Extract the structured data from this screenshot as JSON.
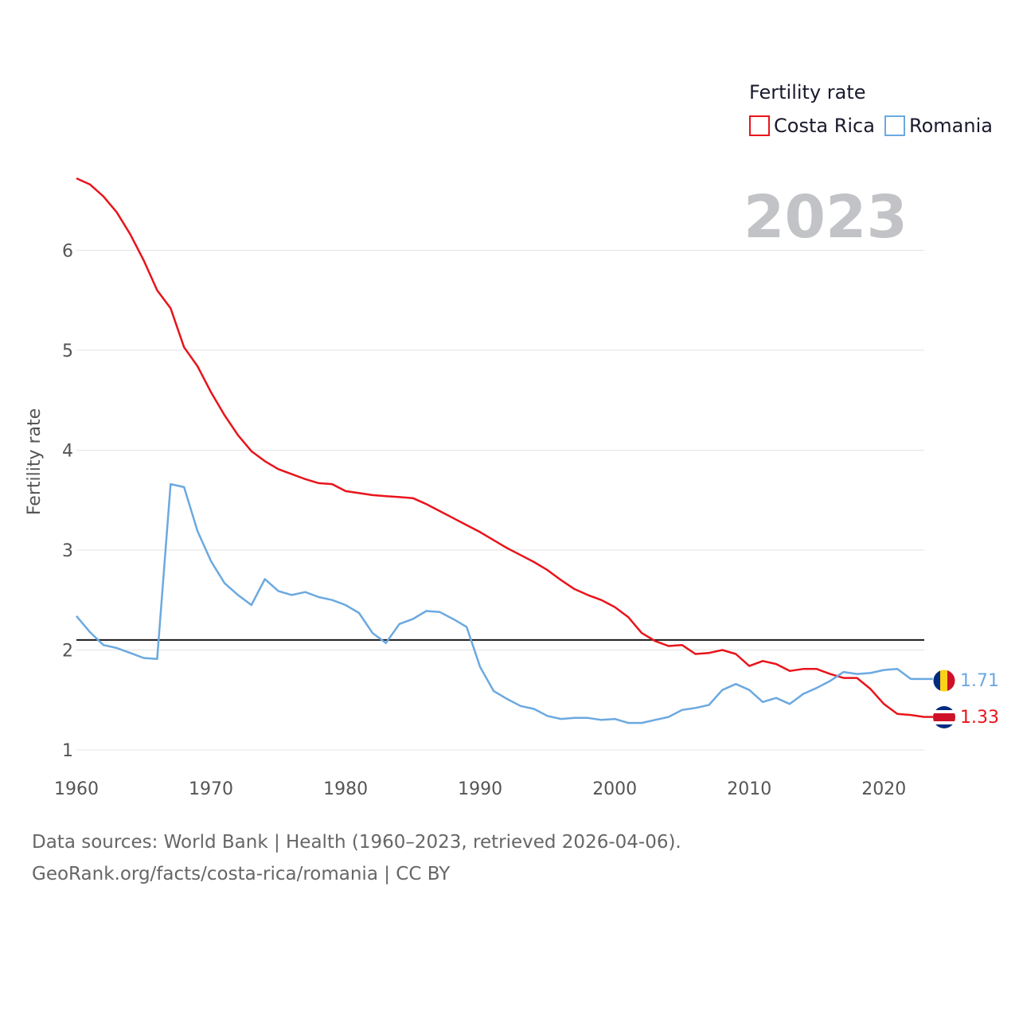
{
  "chart_data": {
    "type": "line",
    "legend_title": "Fertility rate",
    "legend_position": "top-right",
    "ylabel": "Fertility rate",
    "xlabel": "",
    "xlim": [
      1960,
      2023
    ],
    "ylim": [
      1,
      6.8
    ],
    "x_ticks": [
      1960,
      1970,
      1980,
      1990,
      2000,
      2010,
      2020
    ],
    "y_ticks": [
      1,
      2,
      3,
      4,
      5,
      6
    ],
    "grid": true,
    "year_label": "2023",
    "reference_line": {
      "y": 2.1,
      "color": "#1a1a1a"
    },
    "x": [
      1960,
      1961,
      1962,
      1963,
      1964,
      1965,
      1966,
      1967,
      1968,
      1969,
      1970,
      1971,
      1972,
      1973,
      1974,
      1975,
      1976,
      1977,
      1978,
      1979,
      1980,
      1981,
      1982,
      1983,
      1984,
      1985,
      1986,
      1987,
      1988,
      1989,
      1990,
      1991,
      1992,
      1993,
      1994,
      1995,
      1996,
      1997,
      1998,
      1999,
      2000,
      2001,
      2002,
      2003,
      2004,
      2005,
      2006,
      2007,
      2008,
      2009,
      2010,
      2011,
      2012,
      2013,
      2014,
      2015,
      2016,
      2017,
      2018,
      2019,
      2020,
      2021,
      2022,
      2023
    ],
    "series": [
      {
        "name": "Costa Rica",
        "color": "#e8141b",
        "flag": "costa-rica-flag-icon",
        "end_label": "1.33",
        "values": [
          6.72,
          6.66,
          6.54,
          6.38,
          6.16,
          5.9,
          5.6,
          5.42,
          5.03,
          4.84,
          4.58,
          4.35,
          4.15,
          3.99,
          3.89,
          3.81,
          3.76,
          3.71,
          3.67,
          3.66,
          3.59,
          3.57,
          3.55,
          3.54,
          3.53,
          3.52,
          3.46,
          3.39,
          3.32,
          3.25,
          3.18,
          3.1,
          3.02,
          2.95,
          2.88,
          2.8,
          2.7,
          2.61,
          2.55,
          2.5,
          2.43,
          2.33,
          2.17,
          2.09,
          2.04,
          2.05,
          1.96,
          1.97,
          2.0,
          1.96,
          1.84,
          1.89,
          1.86,
          1.79,
          1.81,
          1.81,
          1.76,
          1.72,
          1.72,
          1.61,
          1.46,
          1.36,
          1.35,
          1.33
        ]
      },
      {
        "name": "Romania",
        "color": "#6ba9e0",
        "flag": "romania-flag-icon",
        "end_label": "1.71",
        "values": [
          2.34,
          2.18,
          2.05,
          2.02,
          1.97,
          1.92,
          1.91,
          3.66,
          3.63,
          3.19,
          2.89,
          2.67,
          2.55,
          2.45,
          2.71,
          2.59,
          2.55,
          2.58,
          2.53,
          2.5,
          2.45,
          2.37,
          2.17,
          2.07,
          2.26,
          2.31,
          2.39,
          2.38,
          2.31,
          2.23,
          1.83,
          1.59,
          1.51,
          1.44,
          1.41,
          1.34,
          1.31,
          1.32,
          1.32,
          1.3,
          1.31,
          1.27,
          1.27,
          1.3,
          1.33,
          1.4,
          1.42,
          1.45,
          1.6,
          1.66,
          1.6,
          1.48,
          1.52,
          1.46,
          1.56,
          1.62,
          1.69,
          1.78,
          1.76,
          1.77,
          1.8,
          1.81,
          1.71,
          1.71
        ]
      }
    ]
  },
  "footer": {
    "line1": "Data sources: World Bank | Health (1960–2023, retrieved 2026-04-06).",
    "line2": "GeoRank.org/facts/costa-rica/romania | CC BY"
  }
}
